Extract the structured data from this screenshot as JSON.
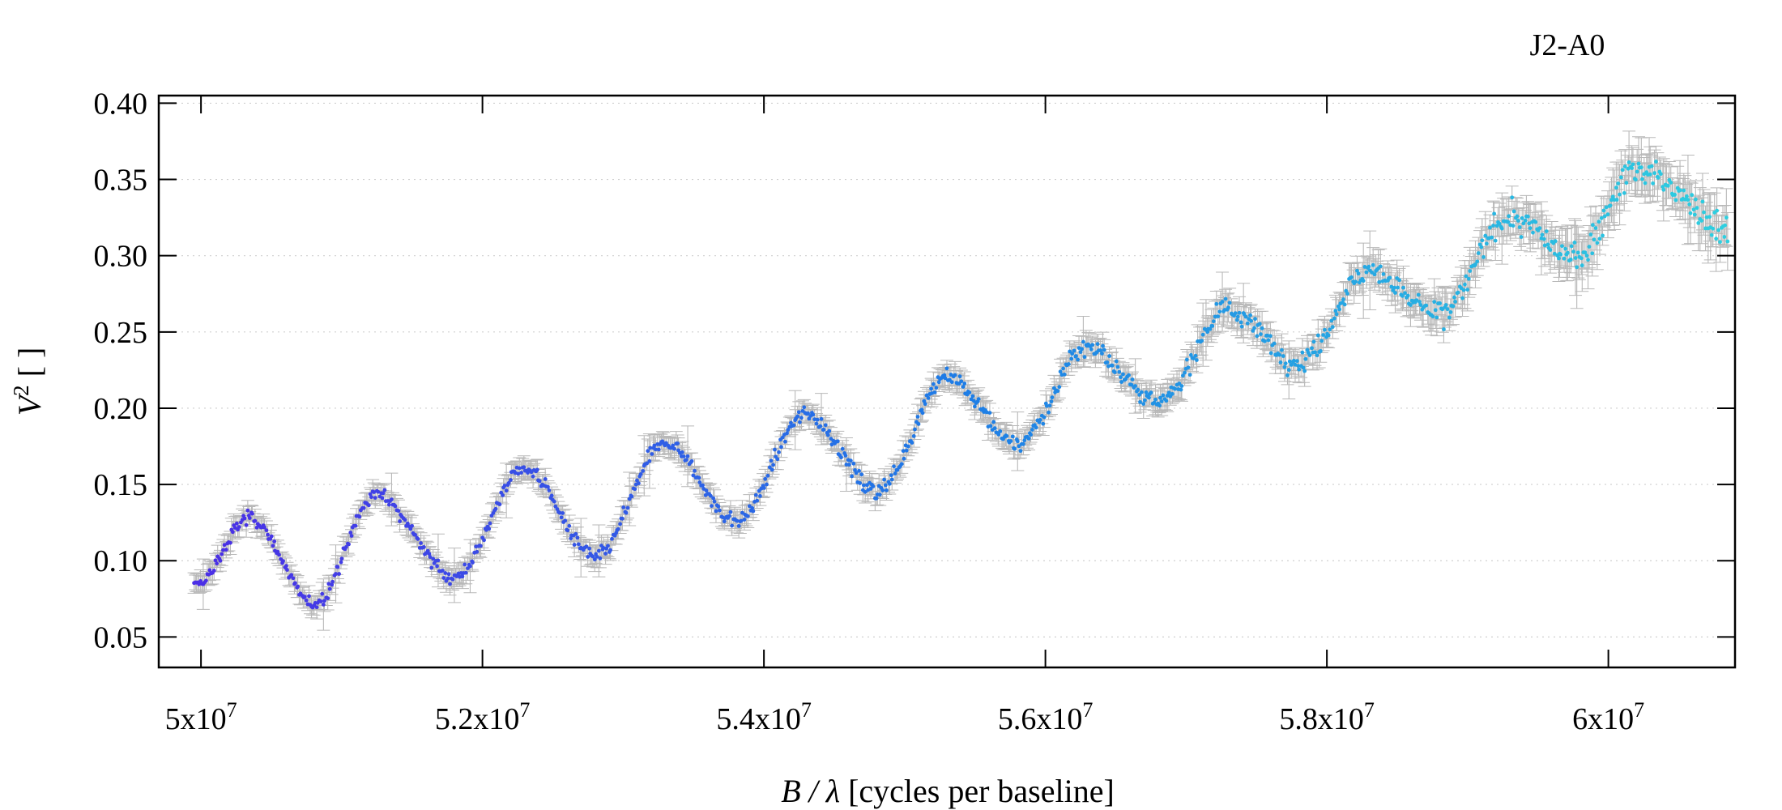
{
  "chart_data": {
    "type": "scatter",
    "annotation": "J2-A0",
    "xlabel": {
      "italic": "B / λ",
      "rest": " [cycles per baseline]"
    },
    "ylabel": {
      "italic": "V",
      "sup": "2",
      "rest": " [ ]"
    },
    "xlim": [
      49700000,
      60900000
    ],
    "ylim": [
      0.03,
      0.405
    ],
    "x_ticks": [
      {
        "value": 50000000,
        "mant": "5x10",
        "exp": "7"
      },
      {
        "value": 52000000,
        "mant": "5.2x10",
        "exp": "7"
      },
      {
        "value": 54000000,
        "mant": "5.4x10",
        "exp": "7"
      },
      {
        "value": 56000000,
        "mant": "5.6x10",
        "exp": "7"
      },
      {
        "value": 58000000,
        "mant": "5.8x10",
        "exp": "7"
      },
      {
        "value": 60000000,
        "mant": "6x10",
        "exp": "7"
      }
    ],
    "y_ticks": [
      "0.05",
      "0.10",
      "0.15",
      "0.20",
      "0.25",
      "0.30",
      "0.35",
      "0.40"
    ],
    "grid": "horizontal-dotted",
    "error_bars": true,
    "error_bar_color": "#b8b8b8",
    "color_gradient": [
      "#4b2ee6",
      "#1e7de6",
      "#2ecfe0"
    ],
    "series_points": [
      [
        49950000,
        0.083
      ],
      [
        50350000,
        0.128
      ],
      [
        50800000,
        0.072
      ],
      [
        51250000,
        0.143
      ],
      [
        51800000,
        0.09
      ],
      [
        52300000,
        0.16
      ],
      [
        52800000,
        0.103
      ],
      [
        53300000,
        0.177
      ],
      [
        53800000,
        0.126
      ],
      [
        54300000,
        0.196
      ],
      [
        54800000,
        0.146
      ],
      [
        55300000,
        0.22
      ],
      [
        55800000,
        0.177
      ],
      [
        56300000,
        0.24
      ],
      [
        56800000,
        0.204
      ],
      [
        57300000,
        0.265
      ],
      [
        57800000,
        0.23
      ],
      [
        58300000,
        0.29
      ],
      [
        58800000,
        0.262
      ],
      [
        59300000,
        0.325
      ],
      [
        59750000,
        0.3
      ],
      [
        60200000,
        0.355
      ],
      [
        60850000,
        0.32
      ]
    ]
  }
}
